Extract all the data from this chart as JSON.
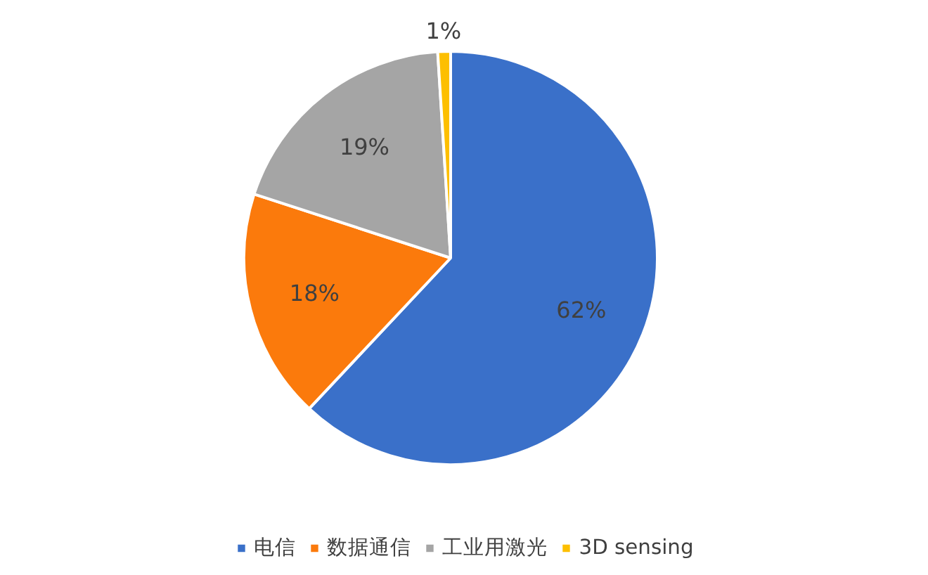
{
  "chart_data": {
    "type": "pie",
    "categories": [
      "电信",
      "数据通信",
      "工业用激光",
      "3D sensing"
    ],
    "values": [
      62,
      18,
      19,
      1
    ],
    "colors": [
      "#3a70c9",
      "#fb7a0c",
      "#a5a5a5",
      "#fdbf00"
    ],
    "value_labels": [
      "62%",
      "18%",
      "19%",
      "1%"
    ],
    "legend": "bottom"
  }
}
